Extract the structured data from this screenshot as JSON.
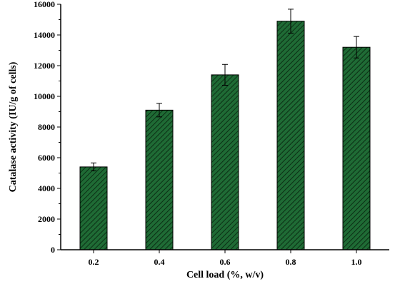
{
  "chart_data": {
    "type": "bar",
    "title": "",
    "xlabel": "Cell load (%, w/v)",
    "ylabel": "Catalase activity (IU/g of cells)",
    "categories": [
      "0.2",
      "0.4",
      "0.6",
      "0.8",
      "1.0"
    ],
    "values": [
      5400,
      9100,
      11400,
      14900,
      13200
    ],
    "errors": [
      260,
      440,
      680,
      780,
      700
    ],
    "ylim": [
      0,
      16000
    ],
    "yticks": [
      "0",
      "2000",
      "4000",
      "6000",
      "8000",
      "10000",
      "12000",
      "14000",
      "16000"
    ],
    "grid": false,
    "legend": "none",
    "bar_color": "#1f6b35",
    "bar_hatch_color": "#0b2e14"
  }
}
